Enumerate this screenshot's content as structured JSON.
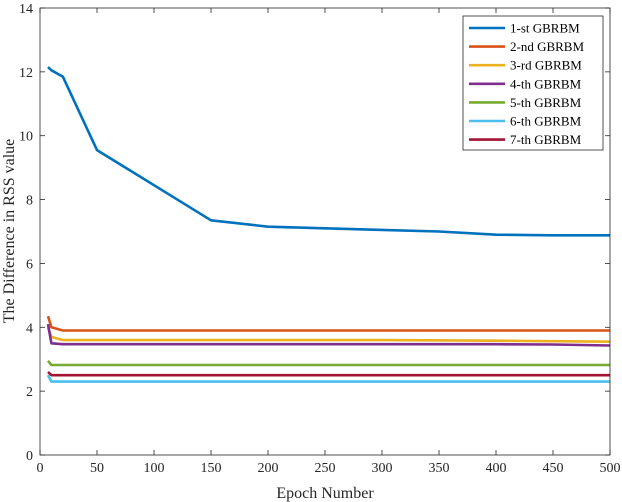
{
  "chart_data": {
    "type": "line",
    "title": "",
    "xlabel": "Epoch Number",
    "ylabel": "The Difference in RSS value",
    "xlim": [
      0,
      500
    ],
    "ylim": [
      0,
      14
    ],
    "xticks": [
      0,
      50,
      100,
      150,
      200,
      250,
      300,
      350,
      400,
      450,
      500
    ],
    "yticks": [
      0,
      2,
      4,
      6,
      8,
      10,
      12,
      14
    ],
    "grid": false,
    "legend_position": "top-right",
    "series": [
      {
        "name": "1-st GBRBM",
        "color": "#0072BD",
        "x": [
          7,
          10,
          20,
          50,
          100,
          150,
          200,
          250,
          300,
          350,
          400,
          450,
          500
        ],
        "y": [
          12.15,
          12.05,
          11.85,
          9.55,
          8.45,
          7.35,
          7.15,
          7.1,
          7.05,
          7.0,
          6.9,
          6.88,
          6.88
        ]
      },
      {
        "name": "2-nd GBRBM",
        "color": "#D95319",
        "x": [
          7,
          10,
          20,
          50,
          100,
          200,
          300,
          400,
          500
        ],
        "y": [
          4.35,
          4.0,
          3.9,
          3.9,
          3.9,
          3.9,
          3.9,
          3.9,
          3.9
        ]
      },
      {
        "name": "3-rd GBRBM",
        "color": "#EDB120",
        "x": [
          7,
          10,
          20,
          50,
          100,
          200,
          300,
          400,
          500
        ],
        "y": [
          4.0,
          3.7,
          3.6,
          3.6,
          3.6,
          3.6,
          3.6,
          3.58,
          3.55
        ]
      },
      {
        "name": "4-th GBRBM",
        "color": "#7E2F8E",
        "x": [
          7,
          10,
          20,
          50,
          100,
          200,
          300,
          400,
          450,
          500
        ],
        "y": [
          4.1,
          3.5,
          3.47,
          3.47,
          3.47,
          3.47,
          3.47,
          3.47,
          3.46,
          3.43
        ]
      },
      {
        "name": "5-th GBRBM",
        "color": "#77AC30",
        "x": [
          7,
          10,
          20,
          50,
          100,
          200,
          300,
          400,
          500
        ],
        "y": [
          2.95,
          2.82,
          2.82,
          2.82,
          2.82,
          2.82,
          2.82,
          2.82,
          2.82
        ]
      },
      {
        "name": "6-th GBRBM",
        "color": "#4DBEEE",
        "x": [
          7,
          10,
          20,
          50,
          100,
          200,
          300,
          400,
          500
        ],
        "y": [
          2.5,
          2.3,
          2.3,
          2.3,
          2.3,
          2.3,
          2.3,
          2.3,
          2.3
        ]
      },
      {
        "name": "7-th GBRBM",
        "color": "#A2142F",
        "x": [
          7,
          10,
          20,
          50,
          100,
          200,
          300,
          400,
          500
        ],
        "y": [
          2.6,
          2.5,
          2.5,
          2.5,
          2.5,
          2.5,
          2.5,
          2.5,
          2.5
        ]
      }
    ]
  }
}
